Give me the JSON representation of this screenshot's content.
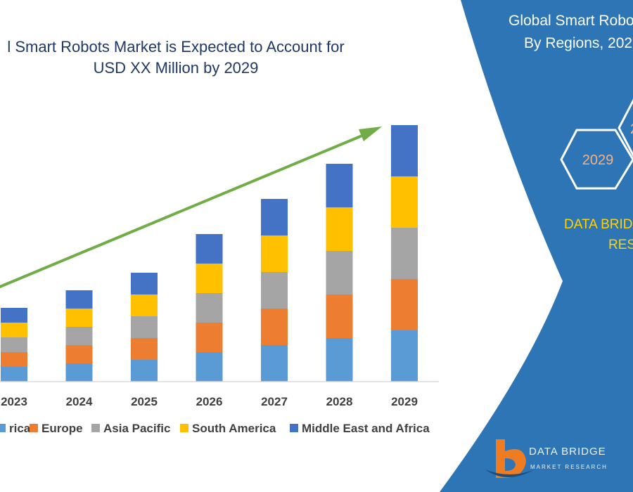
{
  "chart_data": {
    "type": "bar",
    "stacked": true,
    "title": [
      "l Smart Robots Market is Expected to Account for",
      "USD XX Million by 2029"
    ],
    "categories": [
      "2023",
      "2024",
      "2025",
      "2026",
      "2027",
      "2028",
      "2029"
    ],
    "series": [
      {
        "name": "rica",
        "color": "#5b9bd5",
        "values": [
          21,
          26,
          31,
          42,
          52,
          62,
          73
        ]
      },
      {
        "name": "Europe",
        "color": "#ed7d31",
        "values": [
          21,
          26,
          31,
          42,
          52,
          62,
          73
        ]
      },
      {
        "name": "Asia Pacific",
        "color": "#a5a5a5",
        "values": [
          21,
          26,
          31,
          42,
          52,
          62,
          73
        ]
      },
      {
        "name": "South America",
        "color": "#ffc000",
        "values": [
          21,
          26,
          31,
          42,
          52,
          62,
          73
        ]
      },
      {
        "name": "Middle East and Africa",
        "color": "#4472c4",
        "values": [
          21,
          26,
          31,
          42,
          52,
          62,
          73
        ]
      }
    ],
    "ylim": [
      0,
      380
    ],
    "grid": false,
    "legend_position": "bottom",
    "trend_arrow_color": "#70ad47"
  },
  "side_panel": {
    "title": [
      "Global Smart Robo",
      "By Regions, 202"
    ],
    "hex_label_primary": "2029",
    "hex_label_secondary": "2",
    "brand": [
      "DATA BRID",
      "RES"
    ],
    "background": "#2e75b6",
    "logo": {
      "text": "DATA BRIDGE",
      "sub": "MARKET RESEARCH"
    }
  }
}
